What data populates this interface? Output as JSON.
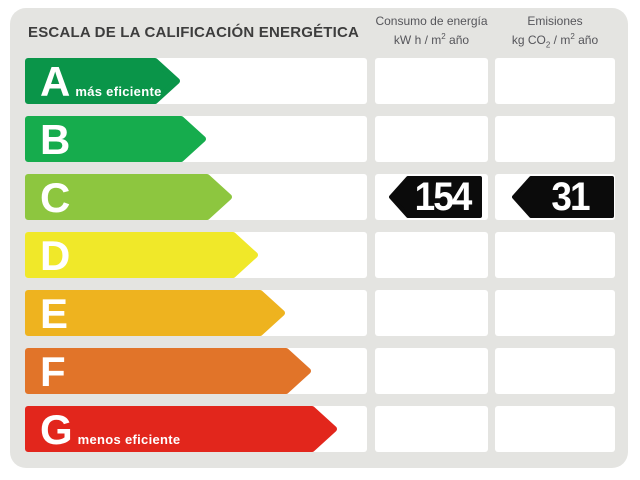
{
  "header": {
    "title": "ESCALA DE LA CALIFICACIÓN ENERGÉTICA",
    "col_consumo": {
      "title": "Consumo de energía",
      "unit_pre": "kW h / m",
      "unit_sup": "2",
      "unit_post": " año"
    },
    "col_emisiones": {
      "title": "Emisiones",
      "unit_pre": "kg CO",
      "unit_sub": "2",
      "unit_mid": " / m",
      "unit_sup": "2",
      "unit_post": " año"
    }
  },
  "scale": {
    "value_tag_color": "#0b0b0b",
    "ratings": [
      {
        "letter": "A",
        "note": "más eficiente",
        "color": "#0a9549",
        "arrow_width": 155,
        "consumo": "",
        "emisiones": ""
      },
      {
        "letter": "B",
        "note": "",
        "color": "#16ac4d",
        "arrow_width": 181,
        "consumo": "",
        "emisiones": ""
      },
      {
        "letter": "C",
        "note": "",
        "color": "#8dc63f",
        "arrow_width": 207,
        "consumo": "154",
        "emisiones": "31"
      },
      {
        "letter": "D",
        "note": "",
        "color": "#f0e829",
        "arrow_width": 233,
        "consumo": "",
        "emisiones": ""
      },
      {
        "letter": "E",
        "note": "",
        "color": "#eeb31f",
        "arrow_width": 260,
        "consumo": "",
        "emisiones": ""
      },
      {
        "letter": "F",
        "note": "",
        "color": "#e17429",
        "arrow_width": 286,
        "consumo": "",
        "emisiones": ""
      },
      {
        "letter": "G",
        "note": "menos eficiente",
        "color": "#e2261c",
        "arrow_width": 312,
        "consumo": "",
        "emisiones": ""
      }
    ]
  },
  "chart_data": {
    "type": "table",
    "title": "ESCALA DE LA CALIFICACIÓN ENERGÉTICA",
    "categories": [
      "A",
      "B",
      "C",
      "D",
      "E",
      "F",
      "G"
    ],
    "category_notes": {
      "A": "más eficiente",
      "G": "menos eficiente"
    },
    "current_rating": "C",
    "columns": [
      "Consumo de energía kW h / m² año",
      "Emisiones kg CO₂ / m² año"
    ],
    "values": {
      "consumo_kwh_m2_ano": 154,
      "emisiones_kg_co2_m2_ano": 31
    },
    "colors": {
      "A": "#0a9549",
      "B": "#16ac4d",
      "C": "#8dc63f",
      "D": "#f0e829",
      "E": "#eeb31f",
      "F": "#e17429",
      "G": "#e2261c"
    }
  }
}
